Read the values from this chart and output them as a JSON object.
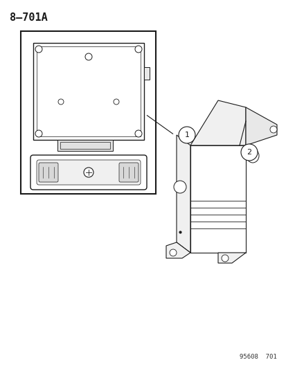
{
  "title": "8–701A",
  "footnote": "95608  701",
  "bg_color": "#ffffff",
  "line_color": "#1a1a1a",
  "callout1_label": "1",
  "callout2_label": "2"
}
